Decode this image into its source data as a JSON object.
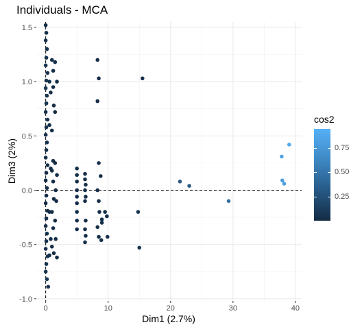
{
  "chart_data": {
    "type": "scatter",
    "title": "Individuals - MCA",
    "xlabel": "Dim1 (2.7%)",
    "ylabel": "Dim3 (2%)",
    "xlim": [
      -1.5,
      41
    ],
    "ylim": [
      -1.02,
      1.55
    ],
    "xticks": [
      0,
      10,
      20,
      30,
      40
    ],
    "yticks": [
      -1.0,
      -0.5,
      0.0,
      0.5,
      1.0,
      1.5
    ],
    "ytick_labels": [
      "-1.0",
      "-0.5",
      "0.0",
      "0.5",
      "1.0",
      "1.5"
    ],
    "reference_lines": {
      "x": 0,
      "y": 0,
      "style": "dashed"
    },
    "grid": true,
    "legend": {
      "title": "cos2",
      "ticks": [
        0.25,
        0.5,
        0.75
      ],
      "tick_labels": [
        "0.25",
        "0.50",
        "0.75"
      ],
      "range": [
        0.0,
        0.95
      ],
      "colors": {
        "low": "#132B43",
        "high": "#56B1F7"
      },
      "placement": "right"
    },
    "points": [
      {
        "x": 0.0,
        "y": 1.52,
        "cos2": 0.02
      },
      {
        "x": 0.1,
        "y": 1.45,
        "cos2": 0.03
      },
      {
        "x": 0.0,
        "y": 1.38,
        "cos2": 0.05
      },
      {
        "x": 0.2,
        "y": 1.3,
        "cos2": 0.04
      },
      {
        "x": 0.1,
        "y": 1.22,
        "cos2": 0.06
      },
      {
        "x": 0.0,
        "y": 1.15,
        "cos2": 0.08
      },
      {
        "x": 0.3,
        "y": 1.08,
        "cos2": 0.05
      },
      {
        "x": 0.1,
        "y": 1.01,
        "cos2": 0.07
      },
      {
        "x": 0.0,
        "y": 0.94,
        "cos2": 0.1
      },
      {
        "x": 0.2,
        "y": 0.87,
        "cos2": 0.06
      },
      {
        "x": 0.1,
        "y": 0.8,
        "cos2": 0.05
      },
      {
        "x": 0.0,
        "y": 0.72,
        "cos2": 0.04
      },
      {
        "x": 0.3,
        "y": 0.65,
        "cos2": 0.05
      },
      {
        "x": 0.1,
        "y": 0.58,
        "cos2": 0.04
      },
      {
        "x": 0.0,
        "y": 0.51,
        "cos2": 0.03
      },
      {
        "x": 0.2,
        "y": 0.44,
        "cos2": 0.03
      },
      {
        "x": 0.1,
        "y": 0.37,
        "cos2": 0.02
      },
      {
        "x": 0.0,
        "y": 0.3,
        "cos2": 0.02
      },
      {
        "x": 0.3,
        "y": 0.23,
        "cos2": 0.02
      },
      {
        "x": 0.1,
        "y": 0.16,
        "cos2": 0.01
      },
      {
        "x": 0.0,
        "y": 0.09,
        "cos2": 0.01
      },
      {
        "x": 0.2,
        "y": 0.02,
        "cos2": 0.01
      },
      {
        "x": 0.1,
        "y": -0.05,
        "cos2": 0.01
      },
      {
        "x": 0.0,
        "y": -0.12,
        "cos2": 0.01
      },
      {
        "x": 0.3,
        "y": -0.19,
        "cos2": 0.02
      },
      {
        "x": 0.1,
        "y": -0.26,
        "cos2": 0.02
      },
      {
        "x": 0.0,
        "y": -0.33,
        "cos2": 0.03
      },
      {
        "x": 0.2,
        "y": -0.4,
        "cos2": 0.03
      },
      {
        "x": 0.1,
        "y": -0.47,
        "cos2": 0.04
      },
      {
        "x": 0.0,
        "y": -0.54,
        "cos2": 0.05
      },
      {
        "x": 0.3,
        "y": -0.61,
        "cos2": 0.05
      },
      {
        "x": 0.1,
        "y": -0.68,
        "cos2": 0.06
      },
      {
        "x": 0.0,
        "y": -0.75,
        "cos2": 0.07
      },
      {
        "x": 0.2,
        "y": -0.82,
        "cos2": 0.07
      },
      {
        "x": 0.4,
        "y": -0.89,
        "cos2": 0.08
      },
      {
        "x": 0.6,
        "y": 1.0,
        "cos2": 0.04
      },
      {
        "x": 0.8,
        "y": 0.9,
        "cos2": 0.03
      },
      {
        "x": 0.6,
        "y": 0.6,
        "cos2": 0.02
      },
      {
        "x": 0.8,
        "y": 0.2,
        "cos2": 0.01
      },
      {
        "x": 0.6,
        "y": -0.2,
        "cos2": 0.01
      },
      {
        "x": 0.8,
        "y": -0.45,
        "cos2": 0.02
      },
      {
        "x": 0.6,
        "y": -0.6,
        "cos2": 0.03
      },
      {
        "x": 1.0,
        "y": 1.2,
        "cos2": 0.02
      },
      {
        "x": 1.2,
        "y": 1.1,
        "cos2": 0.02
      },
      {
        "x": 1.5,
        "y": 1.18,
        "cos2": 0.03
      },
      {
        "x": 1.2,
        "y": 0.95,
        "cos2": 0.01
      },
      {
        "x": 1.8,
        "y": 1.0,
        "cos2": 0.01
      },
      {
        "x": 1.3,
        "y": 0.78,
        "cos2": 0.01
      },
      {
        "x": 1.5,
        "y": 0.72,
        "cos2": 0.01
      },
      {
        "x": 1.0,
        "y": 0.55,
        "cos2": 0.01
      },
      {
        "x": 1.2,
        "y": 0.27,
        "cos2": 0.01
      },
      {
        "x": 1.5,
        "y": 0.25,
        "cos2": 0.01
      },
      {
        "x": 1.0,
        "y": 0.18,
        "cos2": 0.01
      },
      {
        "x": 1.8,
        "y": 0.14,
        "cos2": 0.01
      },
      {
        "x": 1.2,
        "y": 0.08,
        "cos2": 0.01
      },
      {
        "x": 1.6,
        "y": 0.0,
        "cos2": 0.01
      },
      {
        "x": 1.3,
        "y": -0.08,
        "cos2": 0.01
      },
      {
        "x": 1.7,
        "y": -0.1,
        "cos2": 0.01
      },
      {
        "x": 1.0,
        "y": -0.2,
        "cos2": 0.01
      },
      {
        "x": 1.5,
        "y": -0.28,
        "cos2": 0.01
      },
      {
        "x": 1.2,
        "y": -0.35,
        "cos2": 0.01
      },
      {
        "x": 1.6,
        "y": -0.45,
        "cos2": 0.01
      },
      {
        "x": 1.0,
        "y": -0.52,
        "cos2": 0.01
      },
      {
        "x": 1.3,
        "y": -0.58,
        "cos2": 0.01
      },
      {
        "x": 1.8,
        "y": -0.62,
        "cos2": 0.01
      },
      {
        "x": 5.0,
        "y": 0.2,
        "cos2": 0.02
      },
      {
        "x": 5.0,
        "y": 0.14,
        "cos2": 0.02
      },
      {
        "x": 5.0,
        "y": 0.08,
        "cos2": 0.02
      },
      {
        "x": 5.0,
        "y": 0.0,
        "cos2": 0.02
      },
      {
        "x": 5.0,
        "y": -0.06,
        "cos2": 0.02
      },
      {
        "x": 5.0,
        "y": -0.12,
        "cos2": 0.02
      },
      {
        "x": 5.0,
        "y": -0.2,
        "cos2": 0.02
      },
      {
        "x": 5.0,
        "y": -0.28,
        "cos2": 0.02
      },
      {
        "x": 5.0,
        "y": -0.36,
        "cos2": 0.02
      },
      {
        "x": 6.3,
        "y": 0.15,
        "cos2": 0.03
      },
      {
        "x": 6.3,
        "y": 0.1,
        "cos2": 0.03
      },
      {
        "x": 6.4,
        "y": 0.05,
        "cos2": 0.03
      },
      {
        "x": 6.3,
        "y": 0.0,
        "cos2": 0.03
      },
      {
        "x": 6.4,
        "y": -0.06,
        "cos2": 0.03
      },
      {
        "x": 6.3,
        "y": -0.1,
        "cos2": 0.03
      },
      {
        "x": 6.4,
        "y": -0.28,
        "cos2": 0.03
      },
      {
        "x": 6.3,
        "y": -0.36,
        "cos2": 0.03
      },
      {
        "x": 6.4,
        "y": -0.42,
        "cos2": 0.03
      },
      {
        "x": 6.3,
        "y": -0.48,
        "cos2": 0.03
      },
      {
        "x": 8.3,
        "y": 1.2,
        "cos2": 0.02
      },
      {
        "x": 8.5,
        "y": 1.03,
        "cos2": 0.02
      },
      {
        "x": 8.3,
        "y": 0.82,
        "cos2": 0.02
      },
      {
        "x": 8.5,
        "y": 0.25,
        "cos2": 0.03
      },
      {
        "x": 8.8,
        "y": 0.13,
        "cos2": 0.03
      },
      {
        "x": 8.3,
        "y": 0.0,
        "cos2": 0.03
      },
      {
        "x": 8.5,
        "y": -0.1,
        "cos2": 0.03
      },
      {
        "x": 8.6,
        "y": -0.2,
        "cos2": 0.03
      },
      {
        "x": 9.0,
        "y": -0.27,
        "cos2": 0.03
      },
      {
        "x": 8.3,
        "y": -0.34,
        "cos2": 0.03
      },
      {
        "x": 8.5,
        "y": -0.43,
        "cos2": 0.03
      },
      {
        "x": 8.9,
        "y": -0.46,
        "cos2": 0.03
      },
      {
        "x": 9.9,
        "y": -0.43,
        "cos2": 0.03
      },
      {
        "x": 9.8,
        "y": -0.24,
        "cos2": 0.03
      },
      {
        "x": 9.5,
        "y": -0.2,
        "cos2": 0.03
      },
      {
        "x": 9.0,
        "y": -0.3,
        "cos2": 0.03
      },
      {
        "x": 15.5,
        "y": 1.03,
        "cos2": 0.04
      },
      {
        "x": 14.8,
        "y": -0.2,
        "cos2": 0.08
      },
      {
        "x": 15.0,
        "y": -0.53,
        "cos2": 0.08
      },
      {
        "x": 21.5,
        "y": 0.08,
        "cos2": 0.35
      },
      {
        "x": 23.0,
        "y": 0.04,
        "cos2": 0.33
      },
      {
        "x": 29.3,
        "y": -0.1,
        "cos2": 0.5
      },
      {
        "x": 37.8,
        "y": 0.31,
        "cos2": 0.85
      },
      {
        "x": 39.0,
        "y": 0.42,
        "cos2": 0.9
      },
      {
        "x": 37.9,
        "y": 0.09,
        "cos2": 0.82
      },
      {
        "x": 38.2,
        "y": 0.06,
        "cos2": 0.84
      }
    ]
  }
}
